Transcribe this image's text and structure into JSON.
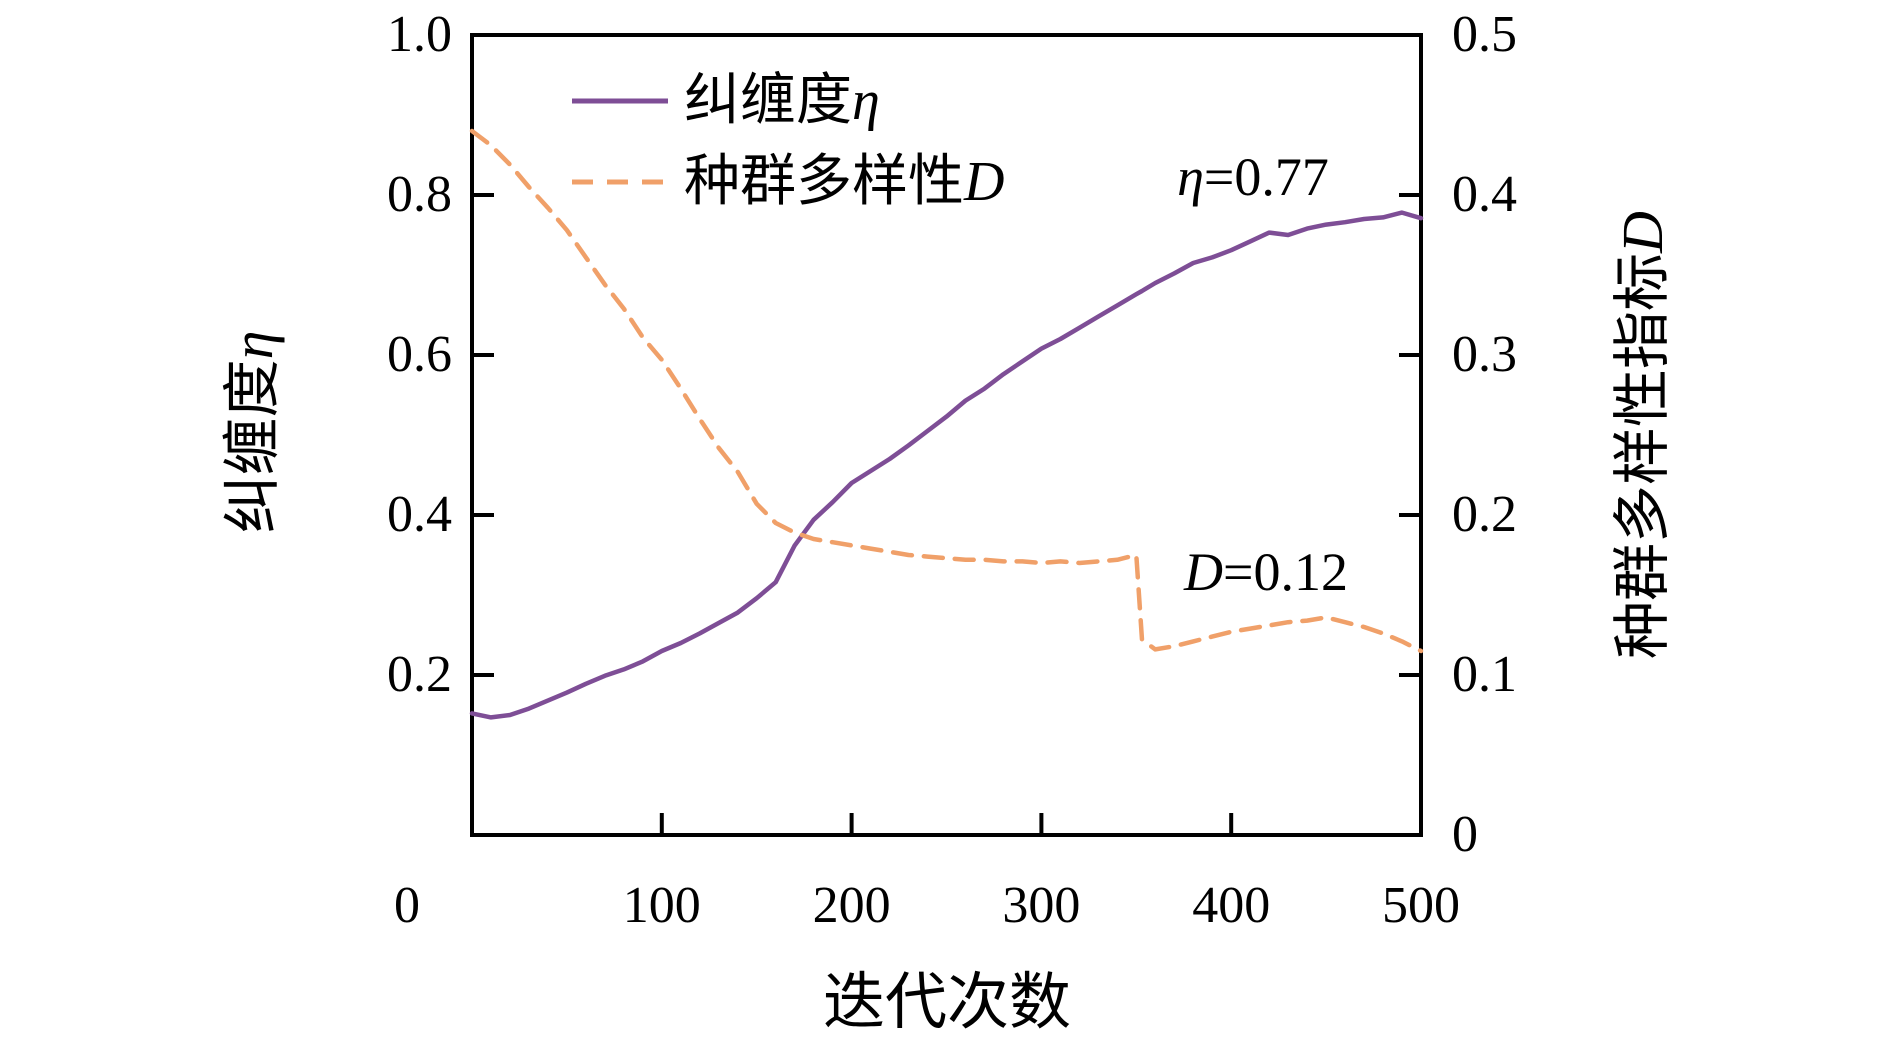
{
  "chart_data": {
    "type": "line",
    "xlabel": "迭代次数",
    "xlim": [
      0,
      500
    ],
    "x_ticks": [
      0,
      100,
      200,
      300,
      400,
      500
    ],
    "x_tick_labels": [
      "0",
      "100",
      "200",
      "300",
      "400",
      "500"
    ],
    "grid": false,
    "legend_position": "upper-left-inside",
    "left_axis": {
      "label_prefix": "纠缠度",
      "label_symbol": "η",
      "lim": [
        0,
        1.0
      ],
      "tick_values": [
        0.2,
        0.4,
        0.6,
        0.8,
        1.0
      ],
      "tick_labels": [
        "0.2",
        "0.4",
        "0.6",
        "0.8",
        "1.0"
      ]
    },
    "right_axis": {
      "label_prefix": "种群多样性指标",
      "label_symbol": "D",
      "lim": [
        0,
        0.5
      ],
      "tick_values": [
        0,
        0.1,
        0.2,
        0.3,
        0.4,
        0.5
      ],
      "tick_labels": [
        "0",
        "0.1",
        "0.2",
        "0.3",
        "0.4",
        "0.5"
      ]
    },
    "x": [
      0,
      10,
      20,
      30,
      40,
      50,
      60,
      70,
      80,
      90,
      100,
      110,
      120,
      130,
      140,
      150,
      160,
      170,
      180,
      190,
      200,
      210,
      220,
      230,
      240,
      250,
      260,
      270,
      280,
      290,
      300,
      310,
      320,
      330,
      340,
      350,
      353,
      360,
      370,
      380,
      390,
      400,
      410,
      420,
      430,
      440,
      450,
      460,
      470,
      480,
      490,
      500
    ],
    "series": [
      {
        "name_prefix": "纠缠度",
        "name_symbol": "η",
        "axis": "left",
        "color": "#7e4e96",
        "style": "solid",
        "final_value": 0.77,
        "values": [
          0.152,
          0.147,
          0.15,
          0.158,
          0.168,
          0.178,
          0.189,
          0.199,
          0.207,
          0.217,
          0.23,
          0.24,
          0.252,
          0.265,
          0.278,
          0.296,
          0.316,
          0.362,
          0.394,
          0.416,
          0.44,
          0.455,
          0.47,
          0.487,
          0.505,
          0.523,
          0.543,
          0.558,
          0.576,
          0.592,
          0.608,
          0.62,
          0.634,
          0.648,
          0.662,
          0.676,
          0.68,
          0.69,
          0.702,
          0.715,
          0.722,
          0.731,
          0.742,
          0.753,
          0.75,
          0.758,
          0.763,
          0.766,
          0.77,
          0.772,
          0.778,
          0.771
        ]
      },
      {
        "name_prefix": "种群多样性",
        "name_symbol": "D",
        "axis": "right",
        "color": "#f0a069",
        "style": "dashed",
        "final_value": 0.12,
        "values": [
          0.44,
          0.431,
          0.419,
          0.405,
          0.392,
          0.378,
          0.361,
          0.344,
          0.329,
          0.311,
          0.297,
          0.279,
          0.26,
          0.242,
          0.227,
          0.207,
          0.195,
          0.189,
          0.185,
          0.183,
          0.181,
          0.179,
          0.177,
          0.175,
          0.174,
          0.173,
          0.172,
          0.172,
          0.171,
          0.171,
          0.17,
          0.171,
          0.17,
          0.171,
          0.172,
          0.175,
          0.122,
          0.116,
          0.118,
          0.121,
          0.124,
          0.127,
          0.129,
          0.131,
          0.133,
          0.134,
          0.136,
          0.133,
          0.13,
          0.126,
          0.121,
          0.115
        ]
      }
    ],
    "annotations": [
      {
        "symbol": "η",
        "text": "=0.77"
      },
      {
        "symbol": "D",
        "text": "=0.12"
      }
    ],
    "axis_color": "#000000"
  }
}
